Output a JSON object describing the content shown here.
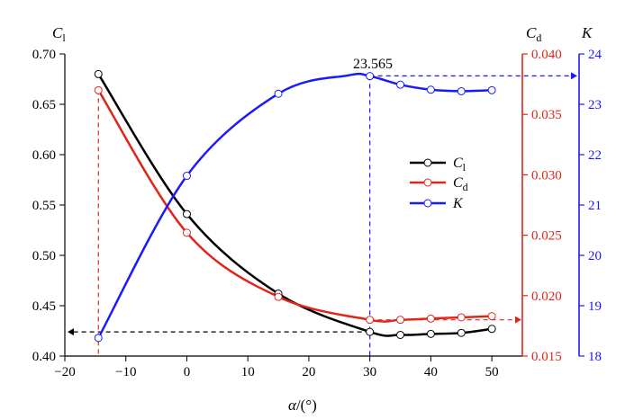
{
  "chart_data": {
    "type": "line",
    "x_axis": {
      "title_main": "α",
      "title_suffix": "/(°)",
      "range": [
        -20,
        55
      ],
      "ticks": [
        -20,
        -10,
        0,
        10,
        20,
        30,
        40,
        50
      ]
    },
    "left_axis": {
      "title_main": "C",
      "title_sub": "l",
      "range": [
        0.4,
        0.7
      ],
      "ticks": [
        "0.40",
        "0.45",
        "0.50",
        "0.55",
        "0.60",
        "0.65",
        "0.70"
      ],
      "color": "#000000"
    },
    "right_axis_cd": {
      "title_main": "C",
      "title_sub": "d",
      "range": [
        0.015,
        0.04
      ],
      "ticks": [
        "0.015",
        "0.020",
        "0.025",
        "0.030",
        "0.035",
        "0.040"
      ],
      "color": "#e0261b"
    },
    "right_axis_k": {
      "title_main": "K",
      "range": [
        18,
        24
      ],
      "ticks": [
        "18",
        "19",
        "20",
        "21",
        "22",
        "23",
        "24"
      ],
      "color": "#1a1aff"
    },
    "series": [
      {
        "name_main": "C",
        "name_sub": "l",
        "axis": "left",
        "color": "#000000",
        "x": [
          -14.5,
          0,
          15,
          30,
          35,
          40,
          45,
          50
        ],
        "y": [
          0.68,
          0.541,
          0.462,
          0.424,
          0.421,
          0.422,
          0.423,
          0.427
        ]
      },
      {
        "name_main": "C",
        "name_sub": "d",
        "axis": "cd",
        "color": "#e0261b",
        "x": [
          -14.5,
          0,
          15,
          30,
          35,
          40,
          45,
          50
        ],
        "y": [
          0.037,
          0.0252,
          0.0199,
          0.018,
          0.018,
          0.0181,
          0.0182,
          0.0183
        ]
      },
      {
        "name_main": "K",
        "name_sub": "",
        "axis": "k",
        "color": "#1a1aff",
        "x": [
          -14.5,
          0,
          15,
          30,
          35,
          40,
          45,
          50
        ],
        "y": [
          18.36,
          21.58,
          23.21,
          23.56,
          23.39,
          23.29,
          23.26,
          23.28
        ]
      }
    ],
    "annotations": [
      {
        "text": "23.565",
        "x": 30,
        "y": 23.565
      }
    ],
    "legend_position": "center-right"
  }
}
